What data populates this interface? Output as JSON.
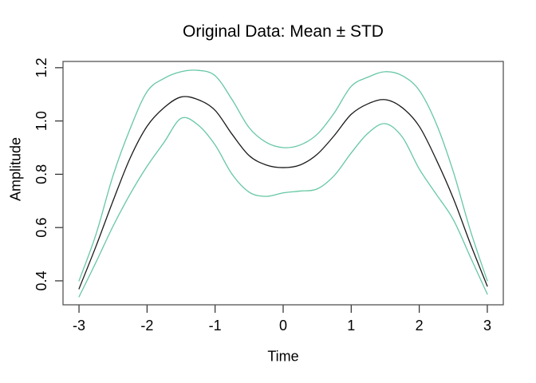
{
  "chart_data": {
    "type": "line",
    "title": "Original Data: Mean ± STD",
    "xlabel": "Time",
    "ylabel": "Amplitude",
    "x_tick_labels": [
      "-3",
      "-2",
      "-1",
      "0",
      "1",
      "2",
      "3"
    ],
    "x_tick_values": [
      -3,
      -2,
      -1,
      0,
      1,
      2,
      3
    ],
    "y_tick_labels": [
      "0.4",
      "0.6",
      "0.8",
      "1.0",
      "1.2"
    ],
    "y_tick_values": [
      0.4,
      0.6,
      0.8,
      1.0,
      1.2
    ],
    "xlim": [
      -3.235,
      3.235
    ],
    "ylim": [
      0.31,
      1.2235
    ],
    "grid": false,
    "legend_position": "none",
    "x": [
      -3,
      -2.75,
      -2.5,
      -2.25,
      -2,
      -1.75,
      -1.5,
      -1.25,
      -1,
      -0.75,
      -0.5,
      -0.25,
      0,
      0.25,
      0.5,
      0.75,
      1,
      1.25,
      1.5,
      1.75,
      2,
      2.25,
      2.5,
      2.75,
      3
    ],
    "series": [
      {
        "name": "mean",
        "color": "#1a1a1a",
        "values": [
          0.37,
          0.53,
          0.7,
          0.86,
          0.98,
          1.05,
          1.09,
          1.08,
          1.04,
          0.95,
          0.87,
          0.835,
          0.825,
          0.835,
          0.875,
          0.945,
          1.025,
          1.065,
          1.08,
          1.05,
          0.98,
          0.855,
          0.71,
          0.54,
          0.38
        ]
      },
      {
        "name": "mean_plus_std",
        "color": "#66c7a4",
        "values": [
          0.4,
          0.575,
          0.795,
          0.97,
          1.11,
          1.16,
          1.185,
          1.19,
          1.17,
          1.08,
          0.975,
          0.92,
          0.9,
          0.91,
          0.95,
          1.03,
          1.13,
          1.165,
          1.185,
          1.17,
          1.115,
          0.99,
          0.81,
          0.59,
          0.4
        ]
      },
      {
        "name": "mean_minus_std",
        "color": "#66c7a4",
        "values": [
          0.34,
          0.47,
          0.605,
          0.725,
          0.83,
          0.92,
          1.01,
          0.985,
          0.91,
          0.8,
          0.733,
          0.717,
          0.73,
          0.737,
          0.745,
          0.795,
          0.88,
          0.955,
          0.99,
          0.94,
          0.82,
          0.725,
          0.63,
          0.49,
          0.35
        ]
      }
    ],
    "colors": {
      "mean_line": "#1a1a1a",
      "std_lines": "#66c7a4",
      "axis": "#333333",
      "background": "#ffffff"
    }
  }
}
